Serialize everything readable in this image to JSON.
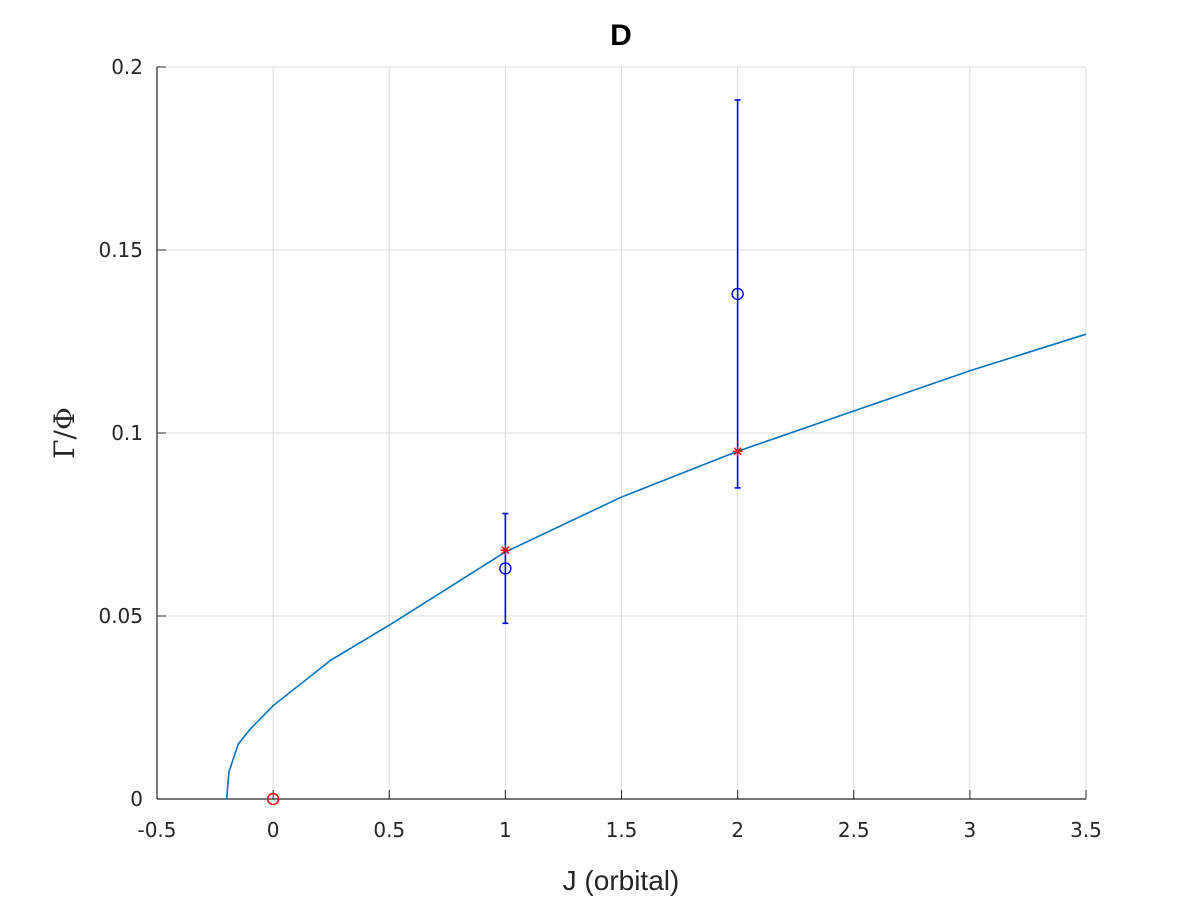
{
  "chart_data": {
    "type": "scatter",
    "title": "D",
    "xlabel": "J (orbital)",
    "ylabel": "Γ/Φ",
    "xlim": [
      -0.5,
      3.5
    ],
    "ylim": [
      0,
      0.2
    ],
    "xticks": [
      -0.5,
      0,
      0.5,
      1,
      1.5,
      2,
      2.5,
      3,
      3.5
    ],
    "xtick_labels": [
      "-0.5",
      "0",
      "0.5",
      "1",
      "1.5",
      "2",
      "2.5",
      "3",
      "3.5"
    ],
    "yticks": [
      0,
      0.05,
      0.1,
      0.15,
      0.2
    ],
    "ytick_labels": [
      "0",
      "0.05",
      "0.1",
      "0.15",
      "0.2"
    ],
    "grid": true,
    "series": [
      {
        "kind": "line",
        "color": "#0072BD",
        "x": [
          -0.2,
          -0.19,
          -0.15,
          -0.1,
          0,
          0.25,
          0.5,
          1,
          1.5,
          2,
          2.5,
          3,
          3.5
        ],
        "y": [
          0,
          0.0075,
          0.015,
          0.019,
          0.0255,
          0.038,
          0.0475,
          0.0675,
          0.0825,
          0.095,
          0.106,
          0.117,
          0.127
        ]
      },
      {
        "kind": "errorbar",
        "marker": "circle",
        "color": "#0000FF",
        "x": [
          1,
          2
        ],
        "y": [
          0.063,
          0.138
        ],
        "ylow": [
          0.048,
          0.085
        ],
        "yhigh": [
          0.078,
          0.191
        ]
      },
      {
        "kind": "scatter",
        "marker": "asterisk",
        "color": "#FF0000",
        "x": [
          1,
          2
        ],
        "y": [
          0.068,
          0.095
        ]
      },
      {
        "kind": "scatter",
        "marker": "circle",
        "color": "#FF0000",
        "x": [
          0
        ],
        "y": [
          0
        ]
      }
    ]
  }
}
